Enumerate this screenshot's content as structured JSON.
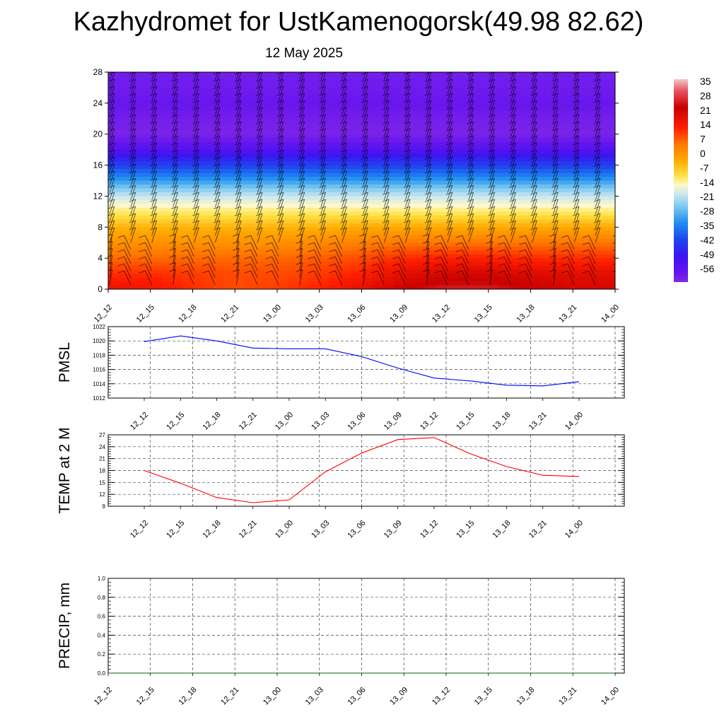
{
  "page": {
    "title": "Kazhydromet for UstKamenogorsk(49.98 82.62)",
    "subtitle": "12 May 2025"
  },
  "chart_data": [
    {
      "type": "heatmap",
      "xlabels": [
        "12_12",
        "12_15",
        "12_18",
        "12_21",
        "13_00",
        "13_03",
        "13_06",
        "13_09",
        "13_12",
        "13_15",
        "13_18",
        "13_21",
        "14_00"
      ],
      "ylim": [
        0,
        28
      ],
      "yticks": [
        0,
        4,
        8,
        12,
        16,
        20,
        24,
        28
      ],
      "colorbar_labels": [
        "35",
        "28",
        "21",
        "14",
        "7",
        "0",
        "-7",
        "-14",
        "-21",
        "-28",
        "-35",
        "-42",
        "-49",
        "-56"
      ],
      "wind_barbs": true,
      "temperature_profile": [
        {
          "y": 0,
          "values": [
            21,
            20,
            17,
            15,
            16,
            18,
            22,
            26,
            28,
            28,
            26,
            24,
            24
          ]
        },
        {
          "y": 2,
          "values": [
            17,
            17,
            16,
            15,
            15,
            16,
            18,
            22,
            24,
            24,
            23,
            22,
            22
          ]
        },
        {
          "y": 4,
          "values": [
            13,
            13,
            13,
            13,
            13,
            14,
            15,
            17,
            18,
            18,
            17,
            17,
            17
          ]
        },
        {
          "y": 6,
          "values": [
            9,
            9,
            9,
            9,
            9,
            10,
            11,
            12,
            12,
            12,
            12,
            12,
            12
          ]
        },
        {
          "y": 8,
          "values": [
            5,
            5,
            5,
            5,
            5,
            5,
            6,
            6,
            6,
            6,
            6,
            6,
            6
          ]
        },
        {
          "y": 10,
          "values": [
            -1,
            -1,
            -1,
            -1,
            -1,
            -1,
            -1,
            -1,
            -1,
            -1,
            -1,
            -1,
            -1
          ]
        },
        {
          "y": 12,
          "values": [
            -9,
            -9,
            -9,
            -9,
            -9,
            -9,
            -9,
            -9,
            -9,
            -9,
            -9,
            -9,
            -9
          ]
        },
        {
          "y": 14,
          "values": [
            -22,
            -22,
            -22,
            -22,
            -22,
            -22,
            -22,
            -22,
            -22,
            -22,
            -22,
            -22,
            -22
          ]
        },
        {
          "y": 16,
          "values": [
            -33,
            -33,
            -33,
            -33,
            -33,
            -33,
            -33,
            -33,
            -33,
            -33,
            -33,
            -33,
            -33
          ]
        },
        {
          "y": 18,
          "values": [
            -48,
            -48,
            -48,
            -48,
            -48,
            -48,
            -48,
            -48,
            -48,
            -48,
            -48,
            -48,
            -48
          ]
        },
        {
          "y": 20,
          "values": [
            -58,
            -58,
            -58,
            -58,
            -58,
            -58,
            -58,
            -58,
            -58,
            -58,
            -58,
            -58,
            -58
          ]
        },
        {
          "y": 22,
          "values": [
            -56,
            -56,
            -56,
            -56,
            -56,
            -56,
            -56,
            -56,
            -56,
            -56,
            -56,
            -56,
            -56
          ]
        },
        {
          "y": 24,
          "values": [
            -53,
            -53,
            -53,
            -53,
            -53,
            -53,
            -53,
            -53,
            -53,
            -53,
            -53,
            -53,
            -53
          ]
        },
        {
          "y": 26,
          "values": [
            -55,
            -55,
            -55,
            -55,
            -55,
            -55,
            -55,
            -55,
            -55,
            -55,
            -55,
            -55,
            -55
          ]
        },
        {
          "y": 28,
          "values": [
            -56,
            -56,
            -56,
            -56,
            -56,
            -56,
            -56,
            -56,
            -56,
            -56,
            -56,
            -56,
            -56
          ]
        }
      ]
    },
    {
      "type": "line",
      "ylabel": "PMSL",
      "categories": [
        "12_12",
        "12_15",
        "12_18",
        "12_21",
        "13_00",
        "13_03",
        "13_06",
        "13_09",
        "13_12",
        "13_15",
        "13_18",
        "13_21",
        "14_00"
      ],
      "values": [
        1019.9,
        1020.7,
        1020.0,
        1019.0,
        1018.9,
        1018.9,
        1017.8,
        1016.2,
        1014.8,
        1014.4,
        1013.8,
        1013.7,
        1014.3
      ],
      "ylim": [
        1012,
        1022
      ],
      "yticks": [
        1012,
        1014,
        1016,
        1018,
        1020,
        1022
      ],
      "color": "#0000ff"
    },
    {
      "type": "line",
      "ylabel": "TEMP at 2 M",
      "categories": [
        "12_12",
        "12_15",
        "12_18",
        "12_21",
        "13_00",
        "13_03",
        "13_06",
        "13_09",
        "13_12",
        "13_15",
        "13_18",
        "13_21",
        "14_00"
      ],
      "values": [
        18.0,
        14.8,
        11.2,
        9.9,
        10.6,
        17.7,
        22.4,
        25.8,
        26.3,
        22.2,
        19.0,
        16.8,
        16.5
      ],
      "ylim": [
        9,
        27
      ],
      "yticks": [
        9,
        12,
        15,
        18,
        21,
        24,
        27
      ],
      "color": "#ff0000"
    },
    {
      "type": "line",
      "ylabel": "PRECIP, mm",
      "categories": [
        "12_12",
        "12_15",
        "12_18",
        "12_21",
        "13_00",
        "13_03",
        "13_06",
        "13_09",
        "13_12",
        "13_15",
        "13_18",
        "13_21",
        "14_00"
      ],
      "values": [
        0,
        0,
        0,
        0,
        0,
        0,
        0,
        0,
        0,
        0,
        0,
        0,
        0
      ],
      "ylim": [
        0,
        1
      ],
      "yticks": [
        "0.0",
        "0.2",
        "0.4",
        "0.6",
        "0.8",
        "1.0"
      ],
      "color": "#006400"
    }
  ]
}
